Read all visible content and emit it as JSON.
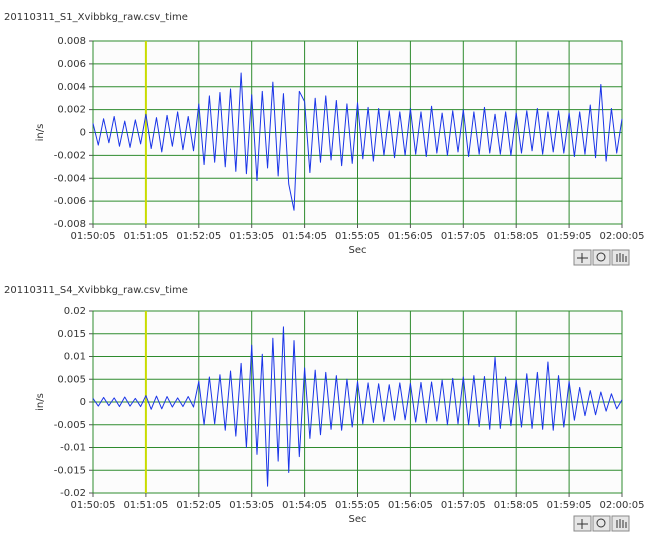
{
  "chart_data": [
    {
      "type": "line",
      "title": "20110311_S1_Xvibbkg_raw.csv_time",
      "xlabel": "Sec",
      "ylabel": "in/s",
      "color": "#1a35e8",
      "grid": true,
      "grid_color": "#2e8b2e",
      "cursor_x": 60,
      "cursor_color": "#c8dc00",
      "xlim": [
        0,
        600
      ],
      "ylim": [
        -0.008,
        0.008
      ],
      "yticks": [
        -0.008,
        -0.006,
        -0.004,
        -0.002,
        0,
        0.002,
        0.004,
        0.006,
        0.008
      ],
      "xticks": [
        {
          "value": 0,
          "label": "01:50:05"
        },
        {
          "value": 60,
          "label": "01:51:05"
        },
        {
          "value": 120,
          "label": "01:52:05"
        },
        {
          "value": 180,
          "label": "01:53:05"
        },
        {
          "value": 240,
          "label": "01:54:05"
        },
        {
          "value": 300,
          "label": "01:55:05"
        },
        {
          "value": 360,
          "label": "01:56:05"
        },
        {
          "value": 420,
          "label": "01:57:05"
        },
        {
          "value": 480,
          "label": "01:58:05"
        },
        {
          "value": 540,
          "label": "01:59:05"
        },
        {
          "value": 600,
          "label": "02:00:05"
        }
      ],
      "x": [
        0,
        6,
        12,
        18,
        24,
        30,
        36,
        42,
        48,
        54,
        60,
        66,
        72,
        78,
        84,
        90,
        96,
        102,
        108,
        114,
        120,
        126,
        132,
        138,
        144,
        150,
        156,
        162,
        168,
        174,
        180,
        186,
        192,
        198,
        204,
        210,
        216,
        222,
        228,
        234,
        240,
        246,
        252,
        258,
        264,
        270,
        276,
        282,
        288,
        294,
        300,
        306,
        312,
        318,
        324,
        330,
        336,
        342,
        348,
        354,
        360,
        366,
        372,
        378,
        384,
        390,
        396,
        402,
        408,
        414,
        420,
        426,
        432,
        438,
        444,
        450,
        456,
        462,
        468,
        474,
        480,
        486,
        492,
        498,
        504,
        510,
        516,
        522,
        528,
        534,
        540,
        546,
        552,
        558,
        564,
        570,
        576,
        582,
        588,
        594,
        600
      ],
      "values": [
        0.0008,
        -0.0011,
        0.0012,
        -0.0009,
        0.0014,
        -0.0012,
        0.001,
        -0.0013,
        0.0011,
        -0.001,
        0.0016,
        -0.0014,
        0.0013,
        -0.0017,
        0.0015,
        -0.0012,
        0.0018,
        -0.0015,
        0.0014,
        -0.0016,
        0.0025,
        -0.0028,
        0.0032,
        -0.0026,
        0.0035,
        -0.003,
        0.0038,
        -0.0034,
        0.0052,
        -0.0036,
        0.0033,
        -0.0042,
        0.0036,
        -0.0031,
        0.0044,
        -0.0038,
        0.0034,
        -0.0045,
        -0.0068,
        0.0036,
        0.0027,
        -0.0035,
        0.003,
        -0.0026,
        0.0032,
        -0.0024,
        0.0028,
        -0.0029,
        0.0025,
        -0.0027,
        0.0026,
        -0.0023,
        0.0022,
        -0.0025,
        0.0021,
        -0.002,
        0.0019,
        -0.0022,
        0.0018,
        -0.002,
        0.0021,
        -0.0019,
        0.0018,
        -0.0021,
        0.0023,
        -0.0018,
        0.0017,
        -0.002,
        0.0019,
        -0.0017,
        0.002,
        -0.0021,
        0.0018,
        -0.0019,
        0.0022,
        -0.0018,
        0.0016,
        -0.0019,
        0.0018,
        -0.002,
        0.0017,
        -0.0018,
        0.0019,
        -0.0016,
        0.0021,
        -0.0019,
        0.0018,
        -0.0017,
        0.0019,
        -0.0018,
        0.0017,
        -0.0021,
        0.0018,
        -0.0019,
        0.0024,
        -0.0022,
        0.0042,
        -0.0025,
        0.0021,
        -0.0018,
        0.0012
      ]
    },
    {
      "type": "line",
      "title": "20110311_S4_Xvibbkg_raw.csv_time",
      "xlabel": "Sec",
      "ylabel": "in/s",
      "color": "#1a35e8",
      "grid": true,
      "grid_color": "#2e8b2e",
      "cursor_x": 60,
      "cursor_color": "#c8dc00",
      "xlim": [
        0,
        600
      ],
      "ylim": [
        -0.02,
        0.02
      ],
      "yticks": [
        -0.02,
        -0.015,
        -0.01,
        -0.005,
        0,
        0.005,
        0.01,
        0.015,
        0.02
      ],
      "xticks": [
        {
          "value": 0,
          "label": "01:50:05"
        },
        {
          "value": 60,
          "label": "01:51:05"
        },
        {
          "value": 120,
          "label": "01:52:05"
        },
        {
          "value": 180,
          "label": "01:53:05"
        },
        {
          "value": 240,
          "label": "01:54:05"
        },
        {
          "value": 300,
          "label": "01:55:05"
        },
        {
          "value": 360,
          "label": "01:56:05"
        },
        {
          "value": 420,
          "label": "01:57:05"
        },
        {
          "value": 480,
          "label": "01:58:05"
        },
        {
          "value": 540,
          "label": "01:59:05"
        },
        {
          "value": 600,
          "label": "02:00:05"
        }
      ],
      "x": [
        0,
        6,
        12,
        18,
        24,
        30,
        36,
        42,
        48,
        54,
        60,
        66,
        72,
        78,
        84,
        90,
        96,
        102,
        108,
        114,
        120,
        126,
        132,
        138,
        144,
        150,
        156,
        162,
        168,
        174,
        180,
        186,
        192,
        198,
        204,
        210,
        216,
        222,
        228,
        234,
        240,
        246,
        252,
        258,
        264,
        270,
        276,
        282,
        288,
        294,
        300,
        306,
        312,
        318,
        324,
        330,
        336,
        342,
        348,
        354,
        360,
        366,
        372,
        378,
        384,
        390,
        396,
        402,
        408,
        414,
        420,
        426,
        432,
        438,
        444,
        450,
        456,
        462,
        468,
        474,
        480,
        486,
        492,
        498,
        504,
        510,
        516,
        522,
        528,
        534,
        540,
        546,
        552,
        558,
        564,
        570,
        576,
        582,
        588,
        594,
        600
      ],
      "values": [
        0.0008,
        -0.0009,
        0.001,
        -0.0008,
        0.0009,
        -0.001,
        0.0011,
        -0.0009,
        0.0008,
        -0.001,
        0.0014,
        -0.0016,
        0.0013,
        -0.0015,
        0.0012,
        -0.0011,
        0.0009,
        -0.001,
        0.0012,
        -0.0011,
        0.0045,
        -0.005,
        0.0055,
        -0.0048,
        0.006,
        -0.0062,
        0.0068,
        -0.0075,
        0.0085,
        -0.01,
        0.0125,
        -0.0115,
        0.0105,
        -0.0185,
        0.014,
        -0.013,
        0.0165,
        -0.0155,
        0.0135,
        -0.012,
        0.0075,
        -0.008,
        0.007,
        -0.0072,
        0.0065,
        -0.006,
        0.0058,
        -0.0062,
        0.005,
        -0.0055,
        0.0045,
        -0.0048,
        0.0042,
        -0.0045,
        0.004,
        -0.0043,
        0.0038,
        -0.004,
        0.0042,
        -0.0039,
        0.0041,
        -0.0044,
        0.0043,
        -0.0046,
        0.0044,
        -0.0042,
        0.0048,
        -0.005,
        0.0052,
        -0.0048,
        0.0055,
        -0.005,
        0.0058,
        -0.0054,
        0.0056,
        -0.006,
        0.0098,
        -0.0058,
        0.0055,
        -0.0052,
        0.0048,
        -0.0055,
        0.0062,
        -0.0058,
        0.0065,
        -0.006,
        0.0088,
        -0.0062,
        0.0058,
        -0.0055,
        0.0045,
        -0.004,
        0.0032,
        -0.003,
        0.0025,
        -0.0028,
        0.0022,
        -0.002,
        0.0018,
        -0.0015,
        0.0005
      ]
    }
  ]
}
